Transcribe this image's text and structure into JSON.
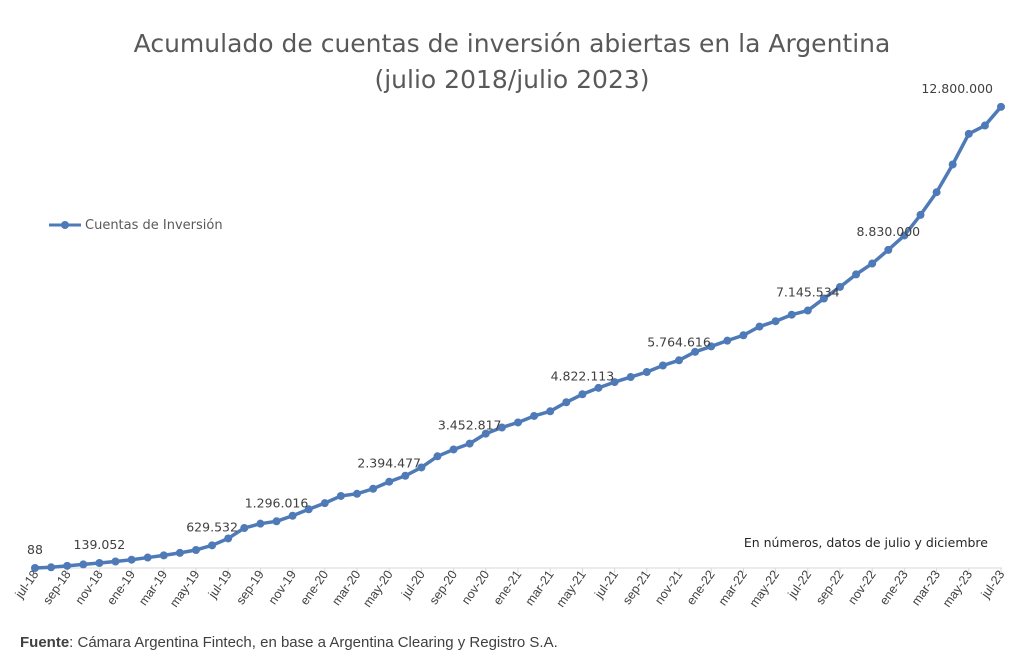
{
  "chart_data": {
    "type": "line",
    "title": "Acumulado de cuentas de inversión abiertas en la Argentina",
    "subtitle": "(julio 2018/julio 2023)",
    "xlabel": "",
    "ylabel": "",
    "ylim": [
      0,
      13600000
    ],
    "grid": false,
    "legend_position": "left",
    "series_color": "#4f7ab8",
    "note": "En números, datos de julio y diciembre",
    "x_tick_labels": [
      "jul-18",
      "sep-18",
      "nov-18",
      "ene-19",
      "mar-19",
      "may-19",
      "jul-19",
      "sep-19",
      "nov-19",
      "ene-20",
      "mar-20",
      "may-20",
      "jul-20",
      "sep-20",
      "nov-20",
      "ene-21",
      "mar-21",
      "may-21",
      "jul-21",
      "sep-21",
      "nov-21",
      "ene-22",
      "mar-22",
      "may-22",
      "jul-22",
      "sep-22",
      "nov-22",
      "ene-23",
      "mar-23",
      "may-23",
      "jul-23"
    ],
    "x": [
      "jul-18",
      "ago-18",
      "sep-18",
      "oct-18",
      "nov-18",
      "dic-18",
      "ene-19",
      "feb-19",
      "mar-19",
      "abr-19",
      "may-19",
      "jun-19",
      "jul-19",
      "ago-19",
      "sep-19",
      "oct-19",
      "nov-19",
      "dic-19",
      "ene-20",
      "feb-20",
      "mar-20",
      "abr-20",
      "may-20",
      "jun-20",
      "jul-20",
      "ago-20",
      "sep-20",
      "oct-20",
      "nov-20",
      "dic-20",
      "ene-21",
      "feb-21",
      "mar-21",
      "abr-21",
      "may-21",
      "jun-21",
      "jul-21",
      "ago-21",
      "sep-21",
      "oct-21",
      "nov-21",
      "dic-21",
      "ene-22",
      "feb-22",
      "mar-22",
      "abr-22",
      "may-22",
      "jun-22",
      "jul-22",
      "ago-22",
      "sep-22",
      "oct-22",
      "nov-22",
      "dic-22",
      "ene-23",
      "feb-23",
      "mar-23",
      "abr-23",
      "may-23",
      "jun-23",
      "jul-23"
    ],
    "series": [
      {
        "name": "Cuentas de Inversión",
        "values": [
          88,
          20000,
          60000,
          100000,
          139052,
          180000,
          230000,
          290000,
          350000,
          420000,
          500000,
          629532,
          820000,
          1110000,
          1230000,
          1296016,
          1450000,
          1630000,
          1800000,
          2000000,
          2060000,
          2200000,
          2394477,
          2560000,
          2790000,
          3100000,
          3290000,
          3452817,
          3730000,
          3900000,
          4040000,
          4220000,
          4350000,
          4600000,
          4822113,
          5000000,
          5160000,
          5300000,
          5440000,
          5620000,
          5764616,
          6000000,
          6150000,
          6310000,
          6460000,
          6700000,
          6850000,
          7030000,
          7145534,
          7480000,
          7800000,
          8150000,
          8450000,
          8830000,
          9230000,
          9800000,
          10430000,
          11200000,
          12050000,
          12280000,
          12800000
        ]
      }
    ],
    "data_labels": [
      {
        "x": "jul-18",
        "text": "88"
      },
      {
        "x": "nov-18",
        "text": "139.052"
      },
      {
        "x": "jun-19",
        "text": "629.532"
      },
      {
        "x": "oct-19",
        "text": "1.296.016"
      },
      {
        "x": "may-20",
        "text": "2.394.477"
      },
      {
        "x": "oct-20",
        "text": "3.452.817"
      },
      {
        "x": "may-21",
        "text": "4.822.113"
      },
      {
        "x": "nov-21",
        "text": "5.764.616"
      },
      {
        "x": "jul-22",
        "text": "7.145.534"
      },
      {
        "x": "dic-22",
        "text": "8.830.000"
      },
      {
        "x": "jul-23",
        "text": "12.800.000"
      }
    ]
  },
  "source": {
    "label": "Fuente",
    "text": ": Cámara Argentina Fintech, en base a Argentina Clearing y Registro S.A."
  }
}
